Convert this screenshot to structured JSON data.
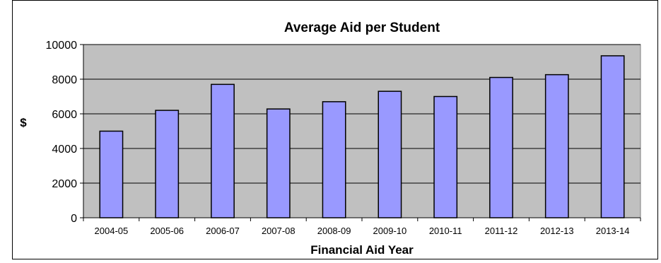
{
  "chart_data": {
    "type": "bar",
    "title": "Average Aid per Student",
    "xlabel": "Financial Aid Year",
    "ylabel": "$",
    "categories": [
      "2004-05",
      "2005-06",
      "2006-07",
      "2007-08",
      "2008-09",
      "2009-10",
      "2010-11",
      "2011-12",
      "2012-13",
      "2013-14"
    ],
    "values": [
      5000,
      6200,
      7700,
      6280,
      6700,
      7300,
      7000,
      8100,
      8260,
      9350
    ],
    "ylim": [
      0,
      10000
    ],
    "yticks": [
      0,
      2000,
      4000,
      6000,
      8000,
      10000
    ],
    "grid": true,
    "legend": "none",
    "colors": {
      "bar_fill": "#9999ff",
      "bar_stroke": "#000000",
      "plot_background": "#c0c0c0",
      "gridline": "#000000",
      "frame": "#000000"
    }
  }
}
